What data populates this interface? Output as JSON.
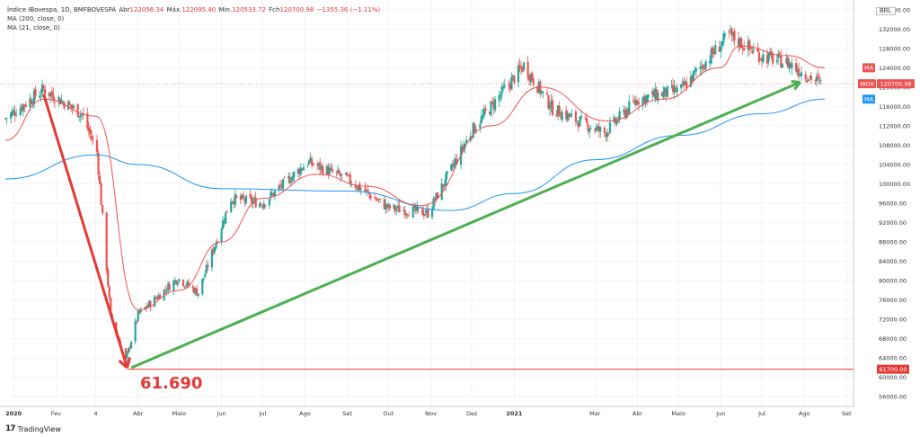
{
  "legend": {
    "symbol": "Índice IBovespa, 1D, BMFBOVESPA",
    "open_label": "Abr",
    "open": "122056.34",
    "high_label": "Máx.",
    "high": "122095.40",
    "low_label": "Mín.",
    "low": "120533.72",
    "close_label": "Fch",
    "close": "120700.98",
    "change": "−1355.36 (−1.11%)",
    "ma200": "MA (200, close, 0)",
    "ma21": "MA (21, close, 0)"
  },
  "currency": "BRL",
  "min_annotation": "61.690",
  "footer": {
    "brand": "TradingView"
  },
  "colors": {
    "up": "#26a69a",
    "down": "#ef5350",
    "ma200": "#2196f3",
    "ma21": "#ef5350",
    "green_line": "#4caf50",
    "red_arrow": "#e53935",
    "grid": "#f0f3fa"
  },
  "chart_data": {
    "type": "candlestick",
    "title": "Índice IBovespa, 1D, BMFBOVESPA",
    "ylim": [
      54000,
      138000
    ],
    "yticks": [
      "136000.00",
      "132000.00",
      "128000.00",
      "124000.00",
      "120000.00",
      "116000.00",
      "112000.00",
      "108000.00",
      "104000.00",
      "100000.00",
      "96000.00",
      "92000.00",
      "88000.00",
      "84000.00",
      "80000.00",
      "76000.00",
      "72000.00",
      "68000.00",
      "64000.00",
      "60000.00",
      "56000.00"
    ],
    "xlim": [
      "2019-12-26",
      "2021-09-06"
    ],
    "xticks": [
      {
        "date": "2020-01-01",
        "label": "2020",
        "bold": true
      },
      {
        "date": "2020-02-01",
        "label": "Fev"
      },
      {
        "date": "2020-03-01",
        "label": "4"
      },
      {
        "date": "2020-04-01",
        "label": "Abr"
      },
      {
        "date": "2020-05-01",
        "label": "Maio"
      },
      {
        "date": "2020-06-01",
        "label": "Jun"
      },
      {
        "date": "2020-07-01",
        "label": "Jul"
      },
      {
        "date": "2020-08-01",
        "label": "Ago"
      },
      {
        "date": "2020-09-01",
        "label": "Set"
      },
      {
        "date": "2020-10-01",
        "label": "Out"
      },
      {
        "date": "2020-11-01",
        "label": "Nov"
      },
      {
        "date": "2020-12-01",
        "label": "Dez"
      },
      {
        "date": "2021-01-01",
        "label": "2021",
        "bold": true
      },
      {
        "date": "2021-03-01",
        "label": "Mar"
      },
      {
        "date": "2021-04-01",
        "label": "Abr"
      },
      {
        "date": "2021-05-01",
        "label": "Maio"
      },
      {
        "date": "2021-06-01",
        "label": "Jun"
      },
      {
        "date": "2021-07-01",
        "label": "Jul"
      },
      {
        "date": "2021-08-01",
        "label": "Ago"
      },
      {
        "date": "2021-09-01",
        "label": "Set"
      }
    ],
    "price_key_points": [
      {
        "date": "2019-12-26",
        "close": 113500
      },
      {
        "date": "2020-01-23",
        "close": 119500
      },
      {
        "date": "2020-02-20",
        "close": 114500
      },
      {
        "date": "2020-03-02",
        "close": 106500
      },
      {
        "date": "2020-03-12",
        "close": 72500
      },
      {
        "date": "2020-03-23",
        "close": 63500
      },
      {
        "date": "2020-04-01",
        "close": 73000
      },
      {
        "date": "2020-04-30",
        "close": 80500
      },
      {
        "date": "2020-05-15",
        "close": 77500
      },
      {
        "date": "2020-06-08",
        "close": 97000
      },
      {
        "date": "2020-07-01",
        "close": 96000
      },
      {
        "date": "2020-08-03",
        "close": 104500
      },
      {
        "date": "2020-09-01",
        "close": 101000
      },
      {
        "date": "2020-10-01",
        "close": 95000
      },
      {
        "date": "2020-10-30",
        "close": 94000
      },
      {
        "date": "2020-12-01",
        "close": 111000
      },
      {
        "date": "2021-01-08",
        "close": 124500
      },
      {
        "date": "2021-01-29",
        "close": 115500
      },
      {
        "date": "2021-03-08",
        "close": 110500
      },
      {
        "date": "2021-04-01",
        "close": 117500
      },
      {
        "date": "2021-05-03",
        "close": 119500
      },
      {
        "date": "2021-06-07",
        "close": 130800
      },
      {
        "date": "2021-06-30",
        "close": 126500
      },
      {
        "date": "2021-07-20",
        "close": 125000
      },
      {
        "date": "2021-08-13",
        "close": 120700
      }
    ],
    "ma200_points": [
      {
        "date": "2019-12-26",
        "value": 101000
      },
      {
        "date": "2020-03-01",
        "value": 106000
      },
      {
        "date": "2020-04-01",
        "value": 104000
      },
      {
        "date": "2020-06-01",
        "value": 99000
      },
      {
        "date": "2020-09-01",
        "value": 98500
      },
      {
        "date": "2020-11-15",
        "value": 94500
      },
      {
        "date": "2021-01-01",
        "value": 98000
      },
      {
        "date": "2021-03-01",
        "value": 105000
      },
      {
        "date": "2021-05-01",
        "value": 110000
      },
      {
        "date": "2021-07-01",
        "value": 114500
      },
      {
        "date": "2021-08-16",
        "value": 117500
      }
    ],
    "ma21_points": [
      {
        "date": "2019-12-26",
        "value": 109000
      },
      {
        "date": "2020-01-23",
        "value": 117500
      },
      {
        "date": "2020-03-01",
        "value": 114000
      },
      {
        "date": "2020-04-01",
        "value": 74000
      },
      {
        "date": "2020-05-01",
        "value": 78000
      },
      {
        "date": "2020-06-01",
        "value": 88000
      },
      {
        "date": "2020-07-01",
        "value": 97000
      },
      {
        "date": "2020-08-10",
        "value": 102000
      },
      {
        "date": "2020-09-15",
        "value": 99500
      },
      {
        "date": "2020-10-25",
        "value": 95500
      },
      {
        "date": "2020-12-15",
        "value": 112000
      },
      {
        "date": "2021-01-20",
        "value": 120000
      },
      {
        "date": "2021-03-10",
        "value": 113000
      },
      {
        "date": "2021-04-20",
        "value": 117500
      },
      {
        "date": "2021-05-31",
        "value": 124000
      },
      {
        "date": "2021-06-15",
        "value": 128500
      },
      {
        "date": "2021-07-20",
        "value": 126500
      },
      {
        "date": "2021-08-16",
        "value": 124000
      }
    ],
    "trendline_green": [
      {
        "date": "2020-03-27",
        "value": 62000
      },
      {
        "date": "2021-07-29",
        "value": 121000
      }
    ],
    "arrow_red": [
      {
        "date": "2020-01-23",
        "value": 118500
      },
      {
        "date": "2020-03-24",
        "value": 62000
      }
    ],
    "hline_min": 61700,
    "price_labels": [
      {
        "text": "MA",
        "value": 124000,
        "color": "#ef5350"
      },
      {
        "text": "IBOV",
        "value": 120700.98,
        "color": "#ef5350"
      },
      {
        "text": "120700.98",
        "value": 120700.98,
        "color": "#ef5350"
      },
      {
        "text": "MA",
        "value": 117500,
        "color": "#2196f3"
      },
      {
        "text": "61700.00",
        "value": 61700,
        "color": "#e53935"
      }
    ]
  }
}
